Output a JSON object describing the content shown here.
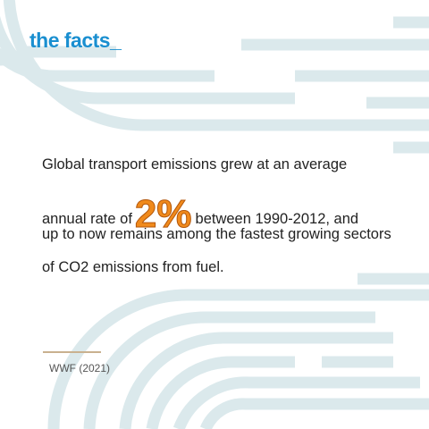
{
  "title": "the facts_",
  "stat": {
    "line1": "Global transport emissions grew at an average",
    "line2_before": "annual rate of",
    "highlight": "2%",
    "line2_after": "between 1990-2012, and",
    "line3": "up to now remains among the fastest growing sectors",
    "line4": "of CO2 emissions from fuel."
  },
  "source": "WWF (2021)",
  "colors": {
    "title": "#1a8fd0",
    "highlight": "#f08a1c",
    "decor": "#d8e8ec",
    "rule": "#c9b18f"
  }
}
